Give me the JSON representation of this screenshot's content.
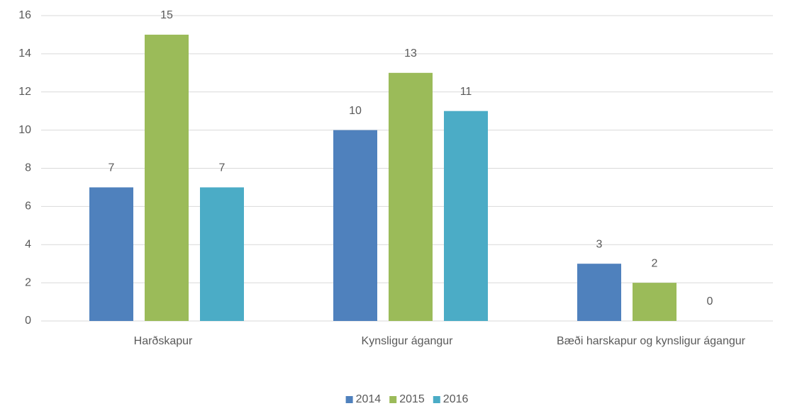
{
  "chart_data": {
    "type": "bar",
    "categories": [
      "Harðskapur",
      "Kynsligur ágangur",
      "Bæði harskapur og kynsligur ágangur"
    ],
    "series": [
      {
        "name": "2014",
        "color": "#4f81bd",
        "values": [
          7,
          10,
          3
        ]
      },
      {
        "name": "2015",
        "color": "#9bbb59",
        "values": [
          15,
          13,
          2
        ]
      },
      {
        "name": "2016",
        "color": "#4bacc6",
        "values": [
          7,
          11,
          0
        ]
      }
    ],
    "ylim": [
      0,
      16
    ],
    "yticks": [
      0,
      2,
      4,
      6,
      8,
      10,
      12,
      14,
      16
    ],
    "grid": true,
    "legend": "bottom"
  }
}
